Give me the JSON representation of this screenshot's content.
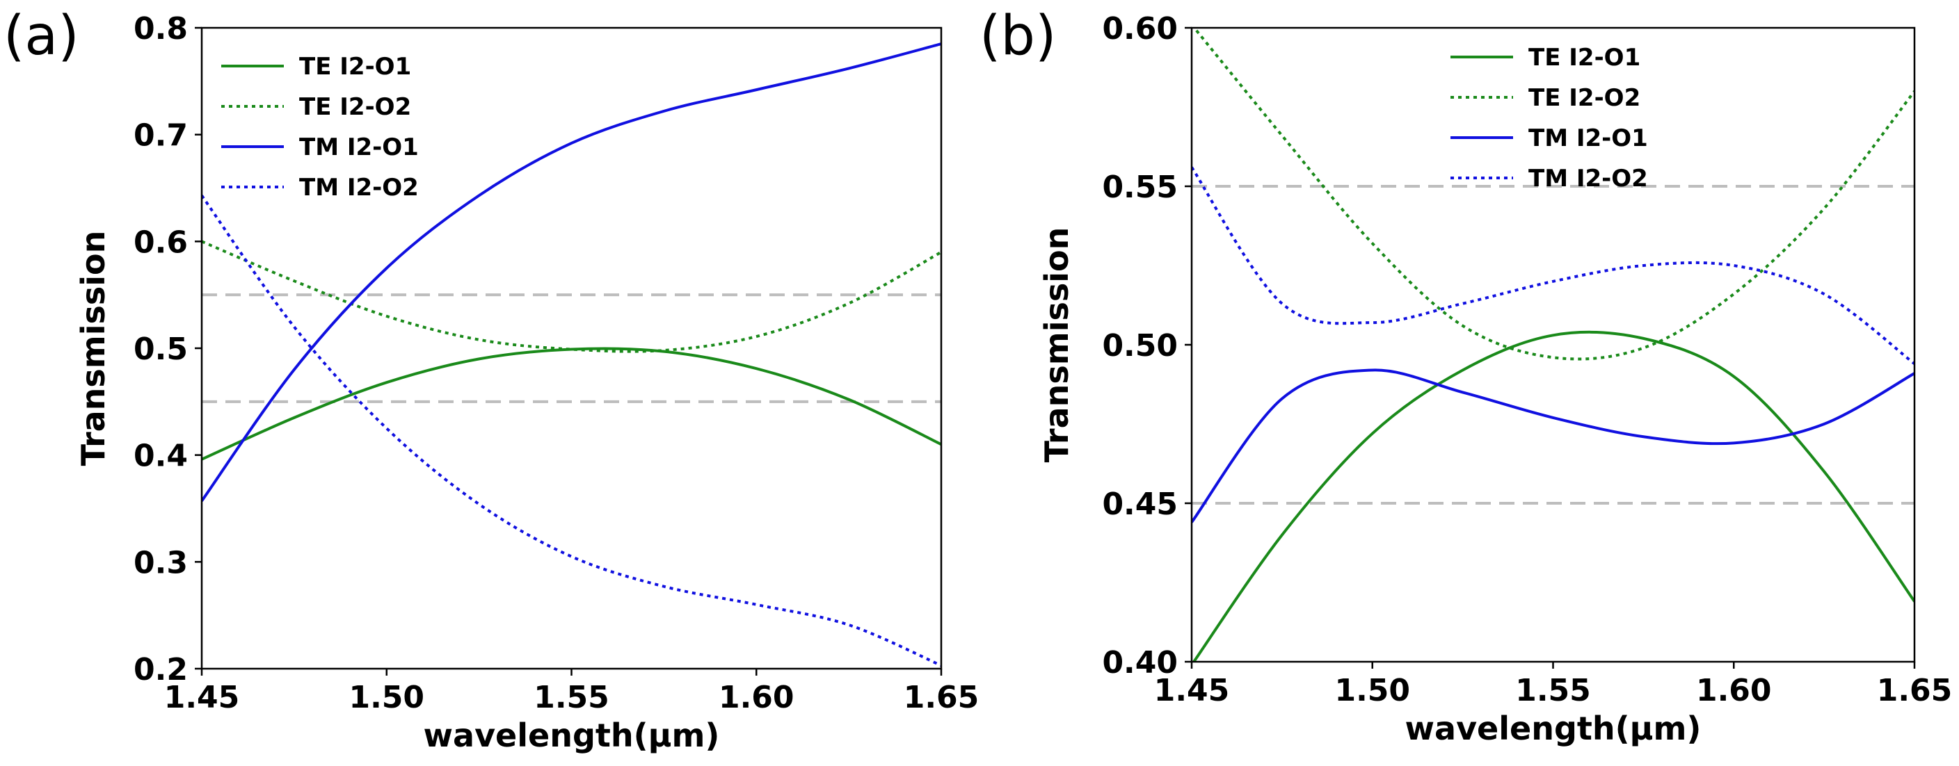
{
  "chart_data": [
    {
      "type": "line",
      "panel_label": "(a)",
      "xlabel": "wavelength(μm)",
      "ylabel": "Transmission",
      "xlim": [
        1.45,
        1.65
      ],
      "ylim": [
        0.2,
        0.8
      ],
      "xticks": [
        "1.45",
        "1.50",
        "1.55",
        "1.60",
        "1.65"
      ],
      "yticks": [
        "0.2",
        "0.3",
        "0.4",
        "0.5",
        "0.6",
        "0.7",
        "0.8"
      ],
      "reference_lines": [
        0.45,
        0.55
      ],
      "legend_position": "top-left",
      "x": [
        1.45,
        1.475,
        1.5,
        1.525,
        1.55,
        1.575,
        1.6,
        1.625,
        1.65
      ],
      "series": [
        {
          "name": "TE I2-O1",
          "color": "#1a8a1a",
          "style": "solid",
          "values": [
            0.396,
            0.435,
            0.468,
            0.49,
            0.499,
            0.497,
            0.481,
            0.452,
            0.41
          ]
        },
        {
          "name": "TE I2-O2",
          "color": "#1a8a1a",
          "style": "dotted",
          "values": [
            0.6,
            0.563,
            0.53,
            0.508,
            0.499,
            0.498,
            0.511,
            0.542,
            0.59
          ]
        },
        {
          "name": "TM I2-O1",
          "color": "#1010e0",
          "style": "solid",
          "values": [
            0.357,
            0.48,
            0.575,
            0.643,
            0.692,
            0.722,
            0.742,
            0.762,
            0.785
          ]
        },
        {
          "name": "TM I2-O2",
          "color": "#1010e0",
          "style": "dotted",
          "values": [
            0.643,
            0.52,
            0.425,
            0.354,
            0.305,
            0.277,
            0.26,
            0.241,
            0.203
          ]
        }
      ]
    },
    {
      "type": "line",
      "panel_label": "(b)",
      "xlabel": "wavelength(μm)",
      "ylabel": "Transmission",
      "xlim": [
        1.45,
        1.65
      ],
      "ylim": [
        0.4,
        0.6
      ],
      "xticks": [
        "1.45",
        "1.50",
        "1.55",
        "1.60",
        "1.65"
      ],
      "yticks": [
        "0.40",
        "0.45",
        "0.50",
        "0.55",
        "0.60"
      ],
      "reference_lines": [
        0.45,
        0.55
      ],
      "legend_position": "top-center",
      "x": [
        1.45,
        1.475,
        1.5,
        1.525,
        1.55,
        1.575,
        1.6,
        1.625,
        1.65
      ],
      "series": [
        {
          "name": "TE I2-O1",
          "color": "#1a8a1a",
          "style": "solid",
          "values": [
            0.399,
            0.44,
            0.472,
            0.492,
            0.503,
            0.502,
            0.49,
            0.46,
            0.419
          ]
        },
        {
          "name": "TE I2-O2",
          "color": "#1a8a1a",
          "style": "dotted",
          "values": [
            0.601,
            0.566,
            0.532,
            0.506,
            0.496,
            0.499,
            0.516,
            0.543,
            0.58
          ]
        },
        {
          "name": "TM I2-O1",
          "color": "#1010e0",
          "style": "solid",
          "values": [
            0.444,
            0.483,
            0.492,
            0.485,
            0.477,
            0.471,
            0.469,
            0.475,
            0.491
          ]
        },
        {
          "name": "TM I2-O2",
          "color": "#1010e0",
          "style": "dotted",
          "values": [
            0.556,
            0.513,
            0.507,
            0.513,
            0.52,
            0.525,
            0.525,
            0.516,
            0.494
          ]
        }
      ]
    }
  ]
}
